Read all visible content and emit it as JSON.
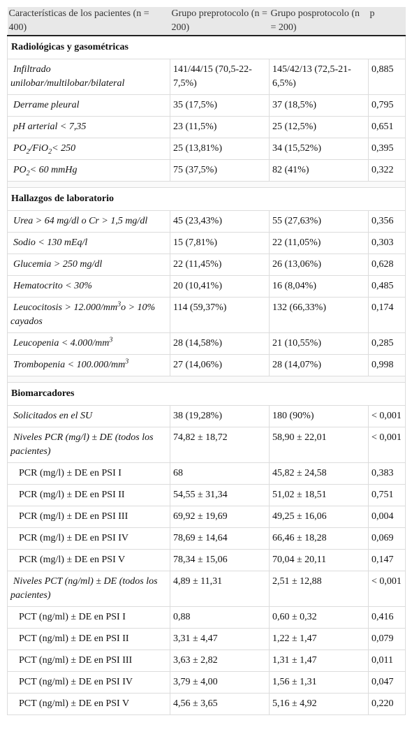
{
  "table": {
    "header": [
      "Características de los pacientes (n = 400)",
      "Grupo preprotocolo (n = 200)",
      "Grupo posprotocolo (n = 200)",
      "p"
    ],
    "sections": [
      {
        "title": "Radiológicas y gasométricas",
        "rows": [
          {
            "label": "Infiltrado unilobar/multilobar/bilateral",
            "cells": [
              "141/44/15 (70,5-22-7,5%)",
              "145/42/13 (72,5-21-6,5%)",
              "0,885"
            ]
          },
          {
            "label": "Derrame pleural",
            "cells": [
              "35 (17,5%)",
              "37 (18,5%)",
              "0,795"
            ]
          },
          {
            "label": "pH arterial < 7,35",
            "cells": [
              "23 (11,5%)",
              "25 (12,5%)",
              "0,651"
            ]
          },
          {
            "label": [
              {
                "text": "PO"
              },
              {
                "sub": "2"
              },
              {
                "text": "/FiO"
              },
              {
                "sub": "2"
              },
              {
                "text": "< 250"
              }
            ],
            "cells": [
              "25 (13,81%)",
              "34 (15,52%)",
              "0,395"
            ]
          },
          {
            "label": [
              {
                "text": "PO"
              },
              {
                "sub": "2"
              },
              {
                "text": "< 60 mmHg"
              }
            ],
            "cells": [
              "75 (37,5%)",
              "82 (41%)",
              "0,322"
            ]
          }
        ]
      },
      {
        "title": "Hallazgos de laboratorio",
        "rows": [
          {
            "label": "Urea > 64 mg/dl o Cr > 1,5 mg/dl",
            "cells": [
              "45 (23,43%)",
              "55 (27,63%)",
              "0,356"
            ]
          },
          {
            "label": "Sodio < 130 mEq/l",
            "cells": [
              "15 (7,81%)",
              "22 (11,05%)",
              "0,303"
            ]
          },
          {
            "label": "Glucemia > 250 mg/dl",
            "cells": [
              "22 (11,45%)",
              "26 (13,06%)",
              "0,628"
            ]
          },
          {
            "label": "Hematocrito < 30%",
            "cells": [
              "20 (10,41%)",
              "16 (8,04%)",
              "0,485"
            ]
          },
          {
            "label": [
              {
                "text": "Leucocitosis > 12.000/mm"
              },
              {
                "sup": "3"
              },
              {
                "text": "o > 10% cayados"
              }
            ],
            "cells": [
              "114 (59,37%)",
              "132 (66,33%)",
              "0,174"
            ]
          },
          {
            "label": [
              {
                "text": "Leucopenia < 4.000/mm"
              },
              {
                "sup": "3"
              }
            ],
            "cells": [
              "28 (14,58%)",
              "21 (10,55%)",
              "0,285"
            ]
          },
          {
            "label": [
              {
                "text": "Trombopenia < 100.000/mm"
              },
              {
                "sup": "3"
              }
            ],
            "cells": [
              "27 (14,06%)",
              "28 (14,07%)",
              "0,998"
            ]
          }
        ]
      },
      {
        "title": "Biomarcadores",
        "rows": [
          {
            "label": "Solicitados en el SU",
            "cells": [
              "38 (19,28%)",
              "180 (90%)",
              "< 0,001"
            ]
          },
          {
            "label": "Niveles PCR (mg/l) ± DE (todos los pacientes)",
            "cells": [
              "74,82 ± 18,72",
              "58,90 ± 22,01",
              "< 0,001"
            ],
            "details": [
              {
                "label": "PCR (mg/l) ± DE en PSI I",
                "cells": [
                  "68",
                  "45,82 ± 24,58",
                  "0,383"
                ]
              },
              {
                "label": "PCR (mg/l) ± DE en PSI II",
                "cells": [
                  "54,55 ± 31,34",
                  "51,02 ± 18,51",
                  "0,751"
                ]
              },
              {
                "label": "PCR (mg/l) ± DE en PSI III",
                "cells": [
                  "69,92 ± 19,69",
                  "49,25 ± 16,06",
                  "0,004"
                ]
              },
              {
                "label": "PCR (mg/l) ± DE en PSI IV",
                "cells": [
                  "78,69 ± 14,64",
                  "66,46 ± 18,28",
                  "0,069"
                ]
              },
              {
                "label": "PCR (mg/l) ± DE en PSI V",
                "cells": [
                  "78,34 ± 15,06",
                  "70,04 ± 20,11",
                  "0,147"
                ]
              }
            ]
          },
          {
            "label": "Niveles PCT (ng/ml) ± DE (todos los pacientes)",
            "cells": [
              "4,89 ± 11,31",
              "2,51 ± 12,88",
              "< 0,001"
            ],
            "details": [
              {
                "label": "PCT (ng/ml) ± DE en PSI I",
                "cells": [
                  "0,88",
                  "0,60 ± 0,32",
                  "0,416"
                ]
              },
              {
                "label": "PCT (ng/ml) ± DE en PSI II",
                "cells": [
                  "3,31 ± 4,47",
                  "1,22 ± 1,47",
                  "0,079"
                ]
              },
              {
                "label": "PCT (ng/ml) ± DE en PSI III",
                "cells": [
                  "3,63 ± 2,82",
                  "1,31 ± 1,47",
                  "0,011"
                ]
              },
              {
                "label": "PCT (ng/ml) ± DE en PSI IV",
                "cells": [
                  "3,79 ± 4,00",
                  "1,56 ± 1,31",
                  "0,047"
                ]
              },
              {
                "label": "PCT (ng/ml) ± DE en PSI V",
                "cells": [
                  "4,56 ± 3,65",
                  "5,16 ± 4,92",
                  "0,220"
                ]
              }
            ]
          }
        ]
      }
    ]
  }
}
